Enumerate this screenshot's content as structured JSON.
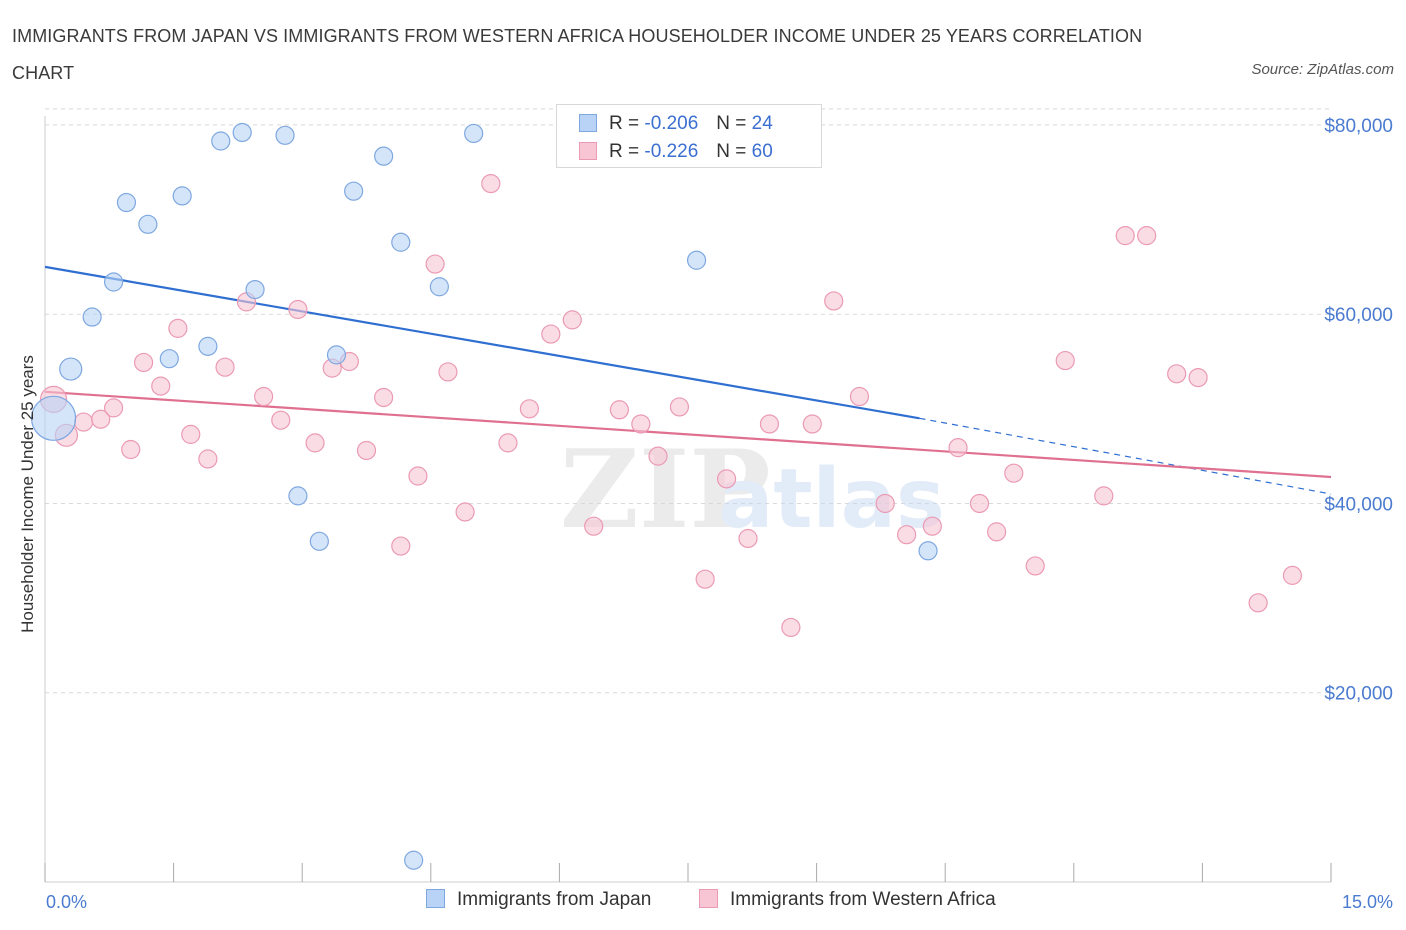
{
  "title": "IMMIGRANTS FROM JAPAN VS IMMIGRANTS FROM WESTERN AFRICA HOUSEHOLDER INCOME UNDER 25 YEARS CORRELATION CHART",
  "source": "Source: ZipAtlas.com",
  "watermark": {
    "zip": "ZIP",
    "atlas": "atlas"
  },
  "legend": {
    "rows": [
      {
        "r_label": "R =",
        "r_value": "-0.206",
        "n_label": "N =",
        "n_value": "24"
      },
      {
        "r_label": "R =",
        "r_value": "-0.226",
        "n_label": "N =",
        "n_value": "60"
      }
    ]
  },
  "colors": {
    "japan_fill": "#b8d3f5",
    "japan_stroke": "#7fa8e0",
    "japan_line": "#2f6fd1",
    "wafrica_fill": "#f7c5d4",
    "wafrica_stroke": "#eb9ab4",
    "wafrica_line": "#e0708f",
    "grid": "#d9d9d9",
    "axis_text": "#4a7bd0"
  },
  "chart_data": {
    "type": "scatter",
    "title": "IMMIGRANTS FROM JAPAN VS IMMIGRANTS FROM WESTERN AFRICA HOUSEHOLDER INCOME UNDER 25 YEARS CORRELATION CHART",
    "xlabel": "",
    "ylabel": "Householder Income Under 25 years",
    "xlim": [
      0,
      15
    ],
    "ylim": [
      0,
      82000
    ],
    "x_tick_labels": [
      "0.0%",
      "15.0%"
    ],
    "y_ticks": [
      20000,
      40000,
      60000,
      80000
    ],
    "y_tick_labels": [
      "$20,000",
      "$40,000",
      "$60,000",
      "$80,000"
    ],
    "grid": true,
    "legend_position": "top-center",
    "series": [
      {
        "name": "Immigrants from Japan",
        "R": -0.206,
        "N": 24,
        "trend": {
          "x0": 0,
          "y0": 65000,
          "x1": 10.2,
          "y1": 49000,
          "dashed_to_x": 15,
          "dashed_to_y": 41000
        },
        "points": [
          [
            0.1,
            49000,
            22
          ],
          [
            0.3,
            54200,
            11
          ],
          [
            0.55,
            59700,
            9
          ],
          [
            0.8,
            63400,
            9
          ],
          [
            0.95,
            71800,
            9
          ],
          [
            1.2,
            69500,
            9
          ],
          [
            1.45,
            55300,
            9
          ],
          [
            1.6,
            72500,
            9
          ],
          [
            1.9,
            56600,
            9
          ],
          [
            2.05,
            78300,
            9
          ],
          [
            2.3,
            79200,
            9
          ],
          [
            2.45,
            62600,
            9
          ],
          [
            2.8,
            78900,
            9
          ],
          [
            2.95,
            40800,
            9
          ],
          [
            3.2,
            36000,
            9
          ],
          [
            3.4,
            55700,
            9
          ],
          [
            3.6,
            73000,
            9
          ],
          [
            3.95,
            76700,
            9
          ],
          [
            4.15,
            67600,
            9
          ],
          [
            4.3,
            2300,
            9
          ],
          [
            4.6,
            62900,
            9
          ],
          [
            5.0,
            79100,
            9
          ],
          [
            7.6,
            65700,
            9
          ],
          [
            10.3,
            35000,
            9
          ]
        ]
      },
      {
        "name": "Immigrants from Western Africa",
        "R": -0.226,
        "N": 60,
        "trend": {
          "x0": 0,
          "y0": 51800,
          "x1": 15,
          "y1": 42800
        },
        "points": [
          [
            0.1,
            51000,
            13
          ],
          [
            0.25,
            47200,
            11
          ],
          [
            0.45,
            48600,
            9
          ],
          [
            0.65,
            48900,
            9
          ],
          [
            0.8,
            50100,
            9
          ],
          [
            1.0,
            45700,
            9
          ],
          [
            1.15,
            54900,
            9
          ],
          [
            1.35,
            52400,
            9
          ],
          [
            1.55,
            58500,
            9
          ],
          [
            1.7,
            47300,
            9
          ],
          [
            1.9,
            44700,
            9
          ],
          [
            2.1,
            54400,
            9
          ],
          [
            2.35,
            61300,
            9
          ],
          [
            2.55,
            51300,
            9
          ],
          [
            2.75,
            48800,
            9
          ],
          [
            2.95,
            60500,
            9
          ],
          [
            3.15,
            46400,
            9
          ],
          [
            3.35,
            54300,
            9
          ],
          [
            3.55,
            55000,
            9
          ],
          [
            3.75,
            45600,
            9
          ],
          [
            3.95,
            51200,
            9
          ],
          [
            4.15,
            35500,
            9
          ],
          [
            4.35,
            42900,
            9
          ],
          [
            4.55,
            65300,
            9
          ],
          [
            4.7,
            53900,
            9
          ],
          [
            4.9,
            39100,
            9
          ],
          [
            5.2,
            73800,
            9
          ],
          [
            5.4,
            46400,
            9
          ],
          [
            5.65,
            50000,
            9
          ],
          [
            5.9,
            57900,
            9
          ],
          [
            6.15,
            59400,
            9
          ],
          [
            6.4,
            37600,
            9
          ],
          [
            6.7,
            49900,
            9
          ],
          [
            6.95,
            48400,
            9
          ],
          [
            7.15,
            45000,
            9
          ],
          [
            7.4,
            50200,
            9
          ],
          [
            7.7,
            32000,
            9
          ],
          [
            7.95,
            42600,
            9
          ],
          [
            8.2,
            36300,
            9
          ],
          [
            8.45,
            48400,
            9
          ],
          [
            8.7,
            26900,
            9
          ],
          [
            8.95,
            48400,
            9
          ],
          [
            9.2,
            61400,
            9
          ],
          [
            9.5,
            51300,
            9
          ],
          [
            9.8,
            40000,
            9
          ],
          [
            10.05,
            36700,
            9
          ],
          [
            10.35,
            37600,
            9
          ],
          [
            10.65,
            45900,
            9
          ],
          [
            10.9,
            40000,
            9
          ],
          [
            11.1,
            37000,
            9
          ],
          [
            11.3,
            43200,
            9
          ],
          [
            11.55,
            33400,
            9
          ],
          [
            11.9,
            55100,
            9
          ],
          [
            12.35,
            40800,
            9
          ],
          [
            12.6,
            68300,
            9
          ],
          [
            12.85,
            68300,
            9
          ],
          [
            13.2,
            53700,
            9
          ],
          [
            13.45,
            53300,
            9
          ],
          [
            14.15,
            29500,
            9
          ],
          [
            14.55,
            32400,
            9
          ]
        ]
      }
    ]
  }
}
